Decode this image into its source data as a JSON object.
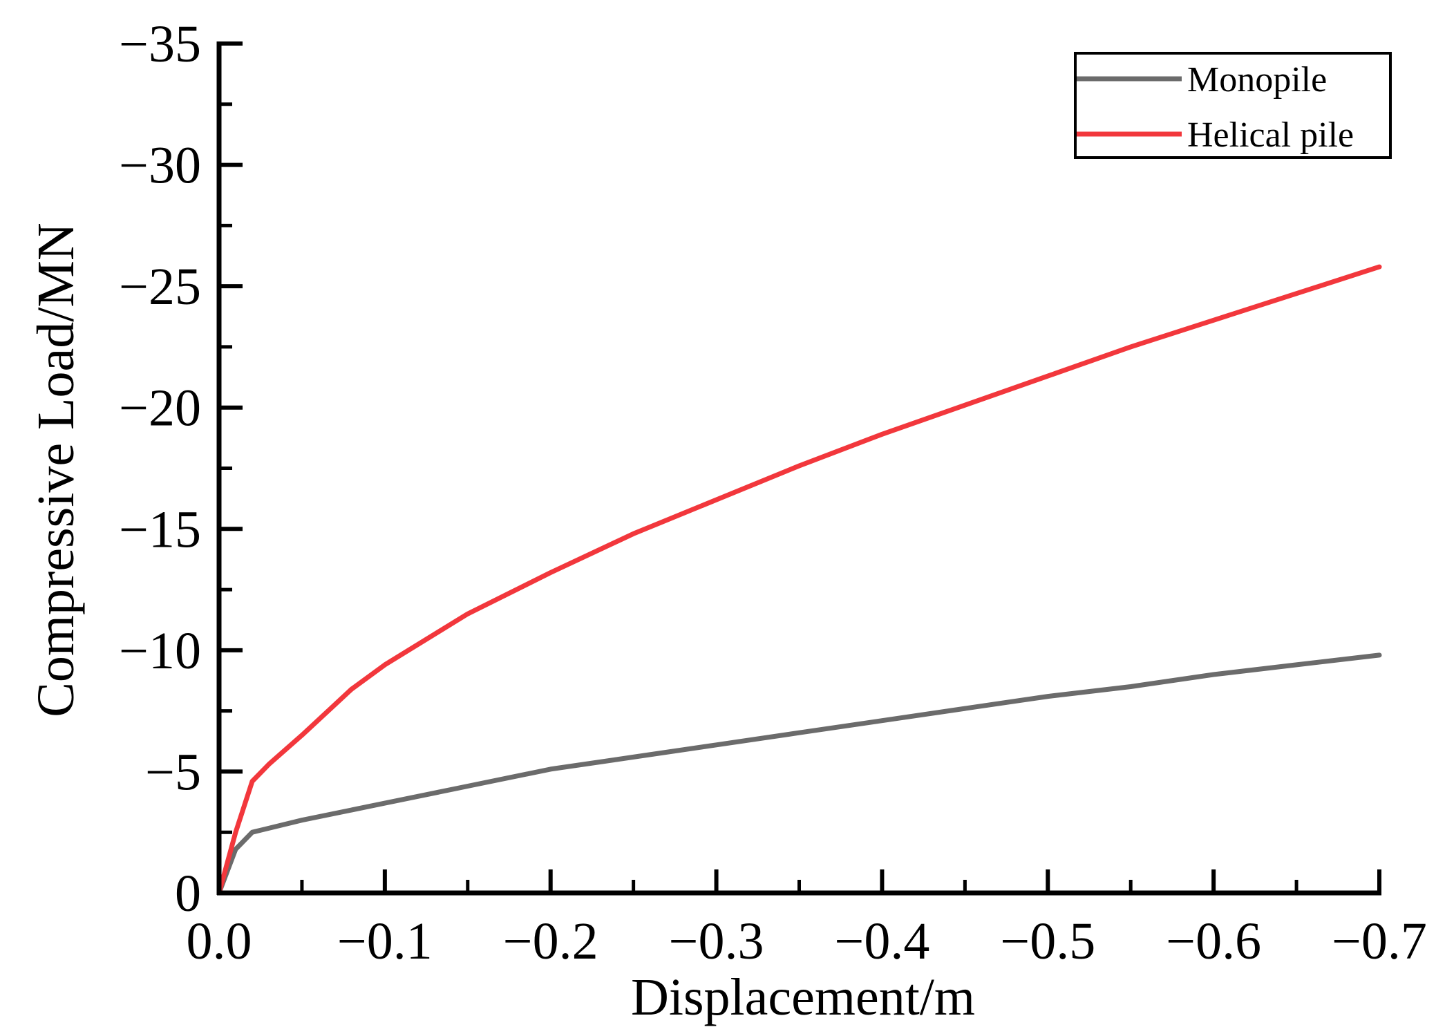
{
  "chart_data": {
    "type": "line",
    "xlabel": "Displacement/m",
    "ylabel": "Compressive Load/MN",
    "xlim": [
      0,
      -0.7
    ],
    "ylim": [
      0,
      -35
    ],
    "x_ticks": [
      0.0,
      -0.1,
      -0.2,
      -0.3,
      -0.4,
      -0.5,
      -0.6,
      -0.7
    ],
    "x_tick_labels": [
      "0.0",
      "−0.1",
      "−0.2",
      "−0.3",
      "−0.4",
      "−0.5",
      "−0.6",
      "−0.7"
    ],
    "y_ticks": [
      0,
      -5,
      -10,
      -15,
      -20,
      -25,
      -30,
      -35
    ],
    "y_tick_labels": [
      "0",
      "−5",
      "−10",
      "−15",
      "−20",
      "−25",
      "−30",
      "−35"
    ],
    "grid": false,
    "legend_position": "top-right",
    "series": [
      {
        "name": "Monopile",
        "color": "#6b6b6b",
        "x": [
          0,
          -0.01,
          -0.02,
          -0.05,
          -0.1,
          -0.15,
          -0.2,
          -0.25,
          -0.3,
          -0.35,
          -0.4,
          -0.45,
          -0.5,
          -0.55,
          -0.6,
          -0.65,
          -0.7
        ],
        "y": [
          0,
          -1.8,
          -2.5,
          -3.0,
          -3.7,
          -4.4,
          -5.1,
          -5.6,
          -6.1,
          -6.6,
          -7.1,
          -7.6,
          -8.1,
          -8.5,
          -9.0,
          -9.4,
          -9.8
        ]
      },
      {
        "name": "Helical pile",
        "color": "#f2373c",
        "x": [
          0,
          -0.01,
          -0.02,
          -0.03,
          -0.05,
          -0.08,
          -0.1,
          -0.15,
          -0.2,
          -0.25,
          -0.3,
          -0.35,
          -0.4,
          -0.45,
          -0.5,
          -0.55,
          -0.6,
          -0.65,
          -0.7
        ],
        "y": [
          0,
          -2.5,
          -4.6,
          -5.3,
          -6.5,
          -8.4,
          -9.4,
          -11.5,
          -13.2,
          -14.8,
          -16.2,
          -17.6,
          -18.9,
          -20.1,
          -21.3,
          -22.5,
          -23.6,
          -24.7,
          -25.8
        ]
      }
    ]
  }
}
